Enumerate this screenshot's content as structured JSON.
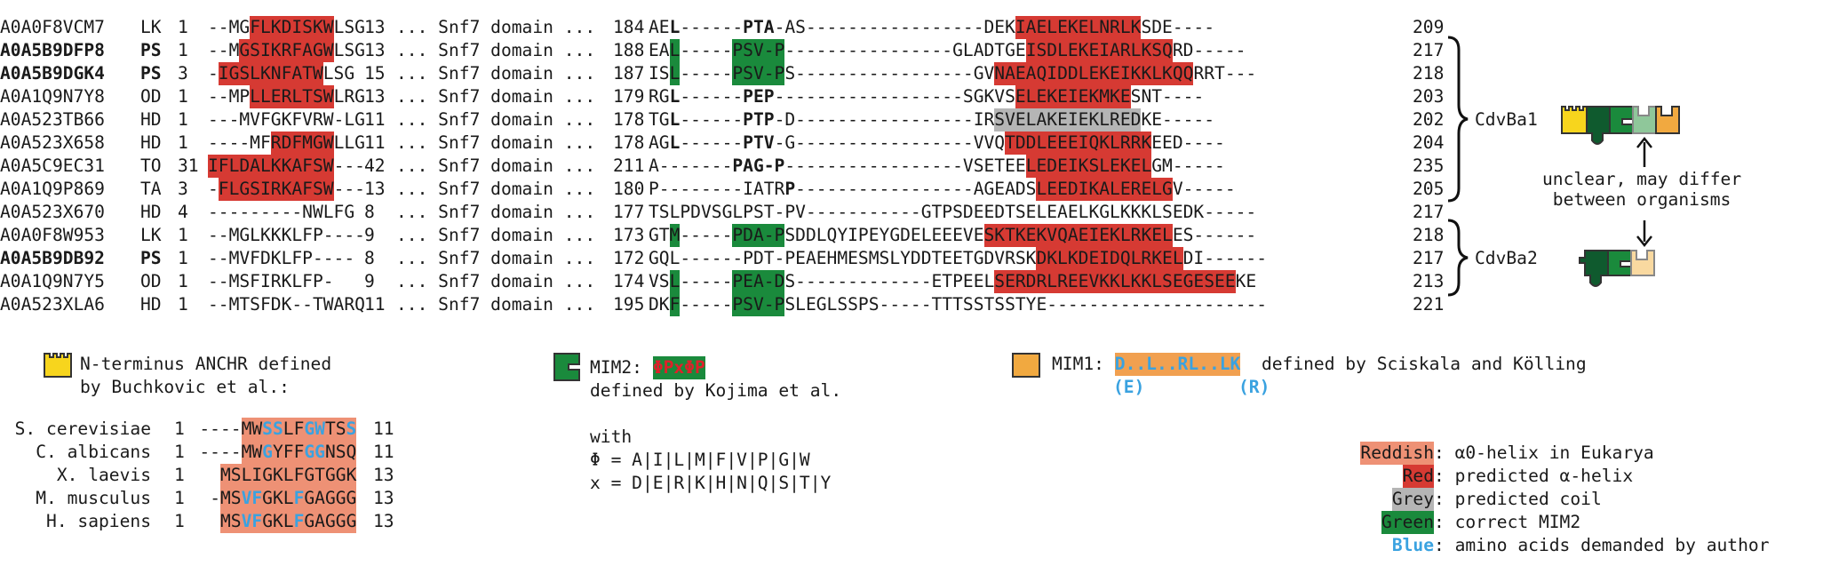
{
  "alignment": {
    "rows": [
      {
        "id": "A0A0F8VCM7",
        "bold": false,
        "org": "LK",
        "start": "1",
        "nseq": [
          [
            "--MG",
            ""
          ],
          [
            "FLKDISKW",
            "R"
          ],
          [
            "LSG",
            ""
          ]
        ],
        "n_end": "13",
        "domain": "... Snf7 domain ...",
        "c_start": "184",
        "cseq": [
          [
            "AE",
            ""
          ],
          [
            "L",
            "K"
          ],
          [
            "------",
            ""
          ],
          [
            "PTA",
            "K"
          ],
          [
            "-AS-----------------DEK",
            ""
          ],
          [
            "IAELEKELNRLK",
            "R"
          ],
          [
            "SDE----",
            ""
          ]
        ],
        "c_end": "209"
      },
      {
        "id": "A0A5B9DFP8",
        "bold": true,
        "org": "PS",
        "start": "1",
        "nseq": [
          [
            "--M",
            ""
          ],
          [
            "GSIKRFAGW",
            "R"
          ],
          [
            "LSG",
            ""
          ]
        ],
        "n_end": "13",
        "domain": "... Snf7 domain ...",
        "c_start": "188",
        "cseq": [
          [
            "EA",
            ""
          ],
          [
            "L",
            "G"
          ],
          [
            "-----",
            ""
          ],
          [
            "PSV-P",
            "G"
          ],
          [
            "----------------GLADTGE",
            ""
          ],
          [
            "ISDLEKEIARLKSQ",
            "R"
          ],
          [
            "RD-----",
            ""
          ]
        ],
        "c_end": "217"
      },
      {
        "id": "A0A5B9DGK4",
        "bold": true,
        "org": "PS",
        "start": "3",
        "nseq": [
          [
            "-",
            ""
          ],
          [
            "IGSLKNFATW",
            "R"
          ],
          [
            "LSG",
            ""
          ]
        ],
        "n_end": "15",
        "domain": "... Snf7 domain ...",
        "c_start": "187",
        "cseq": [
          [
            "IS",
            ""
          ],
          [
            "L",
            "G"
          ],
          [
            "-----",
            ""
          ],
          [
            "PSV-P",
            "G"
          ],
          [
            "S-----------------GV",
            ""
          ],
          [
            "NAEAQIDDLEKEIKKLKQQ",
            "R"
          ],
          [
            "RRT---",
            ""
          ]
        ],
        "c_end": "218"
      },
      {
        "id": "A0A1Q9N7Y8",
        "bold": false,
        "org": "OD",
        "start": "1",
        "nseq": [
          [
            "--MP",
            ""
          ],
          [
            "LLERLTSW",
            "R"
          ],
          [
            "LRG",
            ""
          ]
        ],
        "n_end": "13",
        "domain": "... Snf7 domain ...",
        "c_start": "179",
        "cseq": [
          [
            "RG",
            ""
          ],
          [
            "L",
            "K"
          ],
          [
            "------",
            ""
          ],
          [
            "PEP",
            "K"
          ],
          [
            "------------------SGKVS",
            ""
          ],
          [
            "ELEKEIEKMKE",
            "R"
          ],
          [
            "SNT----",
            ""
          ]
        ],
        "c_end": "203"
      },
      {
        "id": "A0A523TB66",
        "bold": false,
        "org": "HD",
        "start": "1",
        "nseq": [
          [
            "---MVFGKFVRW-LG",
            ""
          ]
        ],
        "n_end": "11",
        "domain": "... Snf7 domain ...",
        "c_start": "178",
        "cseq": [
          [
            "TG",
            ""
          ],
          [
            "L",
            "K"
          ],
          [
            "------",
            ""
          ],
          [
            "PTP",
            "K"
          ],
          [
            "-D-----------------IR",
            ""
          ],
          [
            "SVELAKEIEKLRED",
            "Y"
          ],
          [
            "KE-----",
            ""
          ]
        ],
        "c_end": "202"
      },
      {
        "id": "A0A523X658",
        "bold": false,
        "org": "HD",
        "start": "1",
        "nseq": [
          [
            "----MF",
            ""
          ],
          [
            "RDFMGW",
            "R"
          ],
          [
            "LLG",
            ""
          ]
        ],
        "n_end": "11",
        "domain": "... Snf7 domain ...",
        "c_start": "178",
        "cseq": [
          [
            "AG",
            ""
          ],
          [
            "L",
            "K"
          ],
          [
            "------",
            ""
          ],
          [
            "PTV",
            "K"
          ],
          [
            "-G-----------------VVQ",
            ""
          ],
          [
            "TDDLEEEIQKLRRK",
            "R"
          ],
          [
            "EED----",
            ""
          ]
        ],
        "c_end": "204"
      },
      {
        "id": "A0A5C9EC31",
        "bold": false,
        "org": "TO",
        "start": "31",
        "nseq": [
          [
            "",
            ""
          ],
          [
            "IFLDALKKAFSW",
            "R"
          ],
          [
            "---",
            ""
          ]
        ],
        "n_end": "42",
        "domain": "... Snf7 domain ...",
        "c_start": "211",
        "cseq": [
          [
            "A",
            ""
          ],
          [
            "-------",
            ""
          ],
          [
            "PAG-P",
            "K"
          ],
          [
            "-----------------VSETEE",
            ""
          ],
          [
            "LEDEIKSLEKEL",
            "R"
          ],
          [
            "GM-----",
            ""
          ]
        ],
        "c_end": "235"
      },
      {
        "id": "A0A1Q9P869",
        "bold": false,
        "org": "TA",
        "start": "3",
        "nseq": [
          [
            "-",
            ""
          ],
          [
            "FLGSIRKAFSW",
            "R"
          ],
          [
            "---",
            ""
          ]
        ],
        "n_end": "13",
        "domain": "... Snf7 domain ...",
        "c_start": "180",
        "cseq": [
          [
            "P--------IATR",
            ""
          ],
          [
            "P",
            "K"
          ],
          [
            "-----------------AGEADS",
            ""
          ],
          [
            "LEEDIKALERELG",
            "R"
          ],
          [
            "V-----",
            ""
          ]
        ],
        "c_end": "205"
      },
      {
        "id": "A0A523X670",
        "bold": false,
        "org": "HD",
        "start": "4",
        "nseq": [
          [
            "---------NWLFG",
            ""
          ]
        ],
        "n_end": "8",
        "domain": "... Snf7 domain ...",
        "c_start": "177",
        "cseq": [
          [
            "TSLPDVSGLPST-PV-----------GTPSDEEDTSELEAELKGLKKKLSEDK-----",
            ""
          ]
        ],
        "c_end": "217"
      },
      {
        "id": "A0A0F8W953",
        "bold": false,
        "org": "LK",
        "start": "1",
        "nseq": [
          [
            "--MGLKKKLFP----",
            ""
          ]
        ],
        "n_end": "9",
        "domain": "... Snf7 domain ...",
        "c_start": "173",
        "cseq": [
          [
            "GT",
            ""
          ],
          [
            "M",
            "G"
          ],
          [
            "-----",
            ""
          ],
          [
            "PDA-P",
            "G"
          ],
          [
            "SDDLQYIPEYGDELEEEVE",
            ""
          ],
          [
            "SKTKEKVQAEIEKLRKEL",
            "R"
          ],
          [
            "ES------",
            ""
          ]
        ],
        "c_end": "218"
      },
      {
        "id": "A0A5B9DB92",
        "bold": true,
        "org": "PS",
        "start": "1",
        "nseq": [
          [
            "--MVFDKLFP----",
            ""
          ]
        ],
        "n_end": "8",
        "domain": "... Snf7 domain ...",
        "c_start": "172",
        "cseq": [
          [
            "GQL------PDT-PEAEHMESMSLYDDTEETGDVRSK",
            ""
          ],
          [
            "DKLKDEIDQLRKEL",
            "R"
          ],
          [
            "DI------",
            ""
          ]
        ],
        "c_end": "217"
      },
      {
        "id": "A0A1Q9N7Y5",
        "bold": false,
        "org": "OD",
        "start": "1",
        "nseq": [
          [
            "--MSFIRKLFP-",
            ""
          ]
        ],
        "n_end": "9",
        "domain": "... Snf7 domain ...",
        "c_start": "174",
        "cseq": [
          [
            "VS",
            ""
          ],
          [
            "L",
            "G"
          ],
          [
            "-----",
            ""
          ],
          [
            "PEA-D",
            "G"
          ],
          [
            "S-------------ETPEEL",
            ""
          ],
          [
            "SERDRLREEVKKLKKLSEGESEE",
            "R"
          ],
          [
            "KE",
            ""
          ]
        ],
        "c_end": "213"
      },
      {
        "id": "A0A523XLA6",
        "bold": false,
        "org": "HD",
        "start": "1",
        "nseq": [
          [
            "--MTSFDK--TWARQ",
            ""
          ]
        ],
        "n_end": "11",
        "domain": "... Snf7 domain ...",
        "c_start": "195",
        "cseq": [
          [
            "DK",
            ""
          ],
          [
            "F",
            "G"
          ],
          [
            "-----",
            ""
          ],
          [
            "PSV-P",
            "G"
          ],
          [
            "SLEGLSSPS-----TTTSSTSSTYE---------------------",
            ""
          ]
        ],
        "c_end": "221"
      }
    ],
    "groups": [
      {
        "label": "CdvBa1"
      },
      {
        "label": "CdvBa2"
      }
    ],
    "uncertain_note": "unclear, may differ\nbetween organisms"
  },
  "legend": {
    "anchr": {
      "line1": "N-terminus ANCHR defined",
      "line2": "by Buchkovic et al.:"
    },
    "mim2": {
      "prefix": "MIM2:",
      "motif": "ΦPxΦP",
      "line2": "defined by Kojima et al."
    },
    "mim1": {
      "prefix": "MIM1:",
      "motif": "D..L..RL..LK",
      "suffix": "defined by Sciskala and Kölling",
      "alt1": "(E)",
      "alt2": "(R)"
    },
    "with": {
      "title": "with",
      "phi": "Φ = A|I|L|M|F|V|P|G|W",
      "x": "x = D|E|R|K|H|N|Q|S|T|Y"
    },
    "colors": [
      {
        "key": "Reddish",
        "desc": ": α0-helix in Eukarya",
        "color": "#ee9175"
      },
      {
        "key": "Red",
        "desc": ": predicted α-helix",
        "color": "#d63a33"
      },
      {
        "key": "Grey",
        "desc": ": predicted coil",
        "color": "#b5b5b5"
      },
      {
        "key": "Green",
        "desc": ": correct MIM2",
        "color": "#1a8a3c"
      },
      {
        "key": "Blue",
        "desc": ": amino acids demanded by author",
        "color": "#3aa2e0"
      }
    ]
  },
  "eukarya": [
    {
      "name": "S. cerevisiae",
      "start": "1",
      "seq": "----MWSSLFGWTSS",
      "end": "11"
    },
    {
      "name": "C. albicans",
      "start": "1",
      "seq": "----MWGYFFGGNSQ",
      "end": "11"
    },
    {
      "name": "X. laevis",
      "start": "1",
      "seq": "MSLIGKLFGTGGK",
      "end": "13"
    },
    {
      "name": "M. musculus",
      "start": "1",
      "seq": "-MSVFGKLFGAGGG",
      "end": "13"
    },
    {
      "name": "H. sapiens",
      "start": "1",
      "seq": "MSVFGKLFGAGGG",
      "end": "13"
    }
  ]
}
